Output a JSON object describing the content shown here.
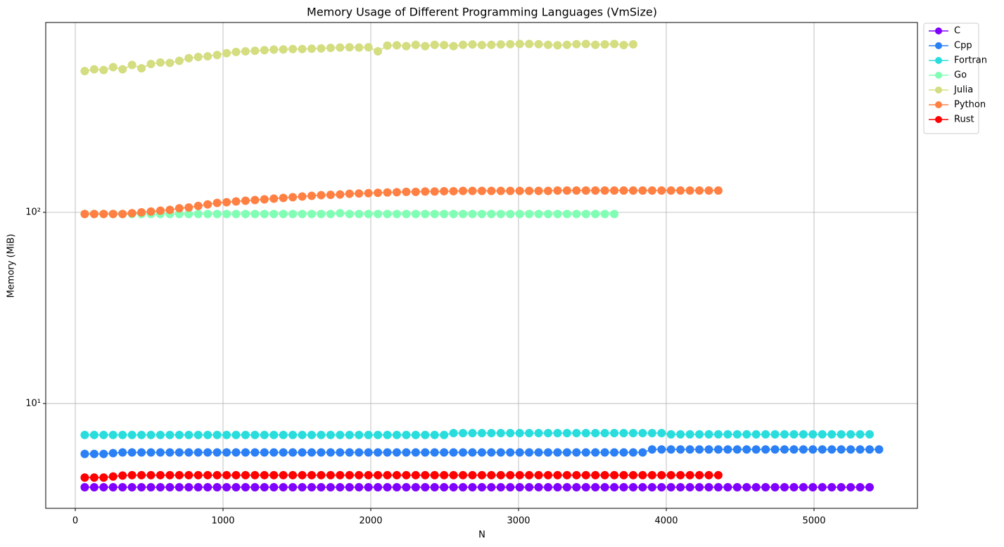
{
  "chart_data": {
    "type": "line",
    "title": "Memory Usage of Different Programming Languages (VmSize)",
    "xlabel": "N",
    "ylabel": "Memory (MiB)",
    "yscale": "log",
    "grid": true,
    "legend": "outside upper right",
    "xlim": [
      -200,
      5700
    ],
    "ylim": [
      2.83,
      984
    ],
    "xticks": [
      0,
      1000,
      2000,
      3000,
      4000,
      5000
    ],
    "yticks": [
      {
        "value": 10,
        "label": "10¹"
      },
      {
        "value": 100,
        "label": "10²"
      }
    ],
    "x": [
      64,
      128,
      192,
      256,
      320,
      384,
      448,
      512,
      576,
      640,
      704,
      768,
      832,
      896,
      960,
      1024,
      1088,
      1152,
      1216,
      1280,
      1344,
      1408,
      1472,
      1536,
      1600,
      1664,
      1728,
      1792,
      1856,
      1920,
      1984,
      2048,
      2112,
      2176,
      2240,
      2304,
      2368,
      2432,
      2496,
      2560,
      2624,
      2688,
      2752,
      2816,
      2880,
      2944,
      3008,
      3072,
      3136,
      3200,
      3264,
      3328,
      3392,
      3456,
      3520,
      3584,
      3648,
      3712,
      3776,
      3840,
      3904,
      3968,
      4032,
      4096,
      4160,
      4224,
      4288,
      4352,
      4416,
      4480,
      4544,
      4608,
      4672,
      4736,
      4800,
      4864,
      4928,
      4992,
      5056,
      5120,
      5184,
      5248,
      5312,
      5376,
      5440
    ],
    "series": [
      {
        "name": "C",
        "color": "#8000ff",
        "values": [
          3.65,
          3.65,
          3.65,
          3.65,
          3.65,
          3.65,
          3.65,
          3.65,
          3.65,
          3.65,
          3.65,
          3.65,
          3.65,
          3.65,
          3.65,
          3.65,
          3.65,
          3.65,
          3.65,
          3.65,
          3.65,
          3.65,
          3.65,
          3.65,
          3.65,
          3.65,
          3.65,
          3.65,
          3.65,
          3.65,
          3.65,
          3.65,
          3.65,
          3.65,
          3.65,
          3.65,
          3.65,
          3.65,
          3.65,
          3.65,
          3.65,
          3.65,
          3.65,
          3.65,
          3.65,
          3.65,
          3.65,
          3.65,
          3.65,
          3.65,
          3.65,
          3.65,
          3.65,
          3.65,
          3.65,
          3.65,
          3.65,
          3.65,
          3.65,
          3.65,
          3.65,
          3.65,
          3.65,
          3.65,
          3.65,
          3.65,
          3.65,
          3.65,
          3.65,
          3.65,
          3.65,
          3.65,
          3.65,
          3.65,
          3.65,
          3.65,
          3.65,
          3.65,
          3.65,
          3.65,
          3.65,
          3.65,
          3.65,
          3.65,
          null
        ]
      },
      {
        "name": "Cpp",
        "color": "#2b80f6",
        "values": [
          5.45,
          5.45,
          5.45,
          5.5,
          5.55,
          5.55,
          5.55,
          5.55,
          5.55,
          5.55,
          5.55,
          5.55,
          5.55,
          5.55,
          5.55,
          5.55,
          5.55,
          5.55,
          5.55,
          5.55,
          5.55,
          5.55,
          5.55,
          5.55,
          5.55,
          5.55,
          5.55,
          5.55,
          5.55,
          5.55,
          5.55,
          5.55,
          5.55,
          5.55,
          5.55,
          5.55,
          5.55,
          5.55,
          5.55,
          5.55,
          5.55,
          5.55,
          5.55,
          5.55,
          5.55,
          5.55,
          5.55,
          5.55,
          5.55,
          5.55,
          5.55,
          5.55,
          5.55,
          5.55,
          5.55,
          5.55,
          5.55,
          5.55,
          5.55,
          5.55,
          5.75,
          5.75,
          5.75,
          5.75,
          5.75,
          5.75,
          5.75,
          5.75,
          5.75,
          5.75,
          5.75,
          5.75,
          5.75,
          5.75,
          5.75,
          5.75,
          5.75,
          5.75,
          5.75,
          5.75,
          5.75,
          5.75,
          5.75,
          5.75,
          5.75
        ]
      },
      {
        "name": "Fortran",
        "color": "#2adddd",
        "values": [
          6.85,
          6.85,
          6.85,
          6.85,
          6.85,
          6.85,
          6.85,
          6.85,
          6.85,
          6.85,
          6.85,
          6.85,
          6.85,
          6.85,
          6.85,
          6.85,
          6.85,
          6.85,
          6.85,
          6.85,
          6.85,
          6.85,
          6.85,
          6.85,
          6.85,
          6.85,
          6.85,
          6.85,
          6.85,
          6.85,
          6.85,
          6.85,
          6.85,
          6.85,
          6.85,
          6.85,
          6.85,
          6.85,
          6.85,
          7.0,
          7.0,
          7.0,
          7.0,
          7.0,
          7.0,
          7.0,
          7.0,
          7.0,
          7.0,
          7.0,
          7.0,
          7.0,
          7.0,
          7.0,
          7.0,
          7.0,
          7.0,
          7.0,
          7.0,
          7.0,
          7.0,
          7.0,
          6.9,
          6.9,
          6.9,
          6.9,
          6.9,
          6.9,
          6.9,
          6.9,
          6.9,
          6.9,
          6.9,
          6.9,
          6.9,
          6.9,
          6.9,
          6.9,
          6.9,
          6.9,
          6.9,
          6.9,
          6.9,
          6.9,
          null
        ]
      },
      {
        "name": "Go",
        "color": "#80ffb4",
        "values": [
          98,
          98,
          98,
          98,
          98,
          98,
          98,
          98,
          98,
          98,
          98,
          98,
          98,
          98,
          98,
          98,
          98,
          98,
          98,
          98,
          98,
          98,
          98,
          98,
          98,
          98,
          98,
          99,
          98,
          98,
          98,
          98,
          98,
          98,
          98,
          98,
          98,
          98,
          98,
          98,
          98,
          98,
          98,
          98,
          98,
          98,
          98,
          98,
          98,
          98,
          98,
          98,
          98,
          98,
          98,
          98,
          98,
          null,
          null,
          null,
          null,
          null,
          null,
          null,
          null,
          null,
          null,
          null,
          null,
          null,
          null,
          null,
          null,
          null,
          null,
          null,
          null,
          null,
          null,
          null,
          null,
          null,
          null,
          null,
          null
        ]
      },
      {
        "name": "Julia",
        "color": "#d4dd80",
        "values": [
          548,
          560,
          555,
          575,
          560,
          590,
          567,
          597,
          608,
          605,
          620,
          640,
          650,
          655,
          665,
          680,
          690,
          695,
          700,
          705,
          710,
          712,
          715,
          715,
          718,
          720,
          725,
          728,
          730,
          728,
          730,
          695,
          745,
          748,
          740,
          752,
          740,
          752,
          750,
          740,
          752,
          755,
          750,
          752,
          755,
          758,
          760,
          760,
          758,
          752,
          748,
          752,
          758,
          760,
          752,
          756,
          760,
          750,
          757,
          null,
          null,
          null,
          null,
          null,
          null,
          null,
          null,
          null,
          null,
          null,
          null,
          null,
          null,
          null,
          null,
          null,
          null,
          null,
          null,
          null,
          null,
          null,
          null,
          null,
          null
        ]
      },
      {
        "name": "Python",
        "color": "#ff8042",
        "values": [
          98,
          98,
          98,
          98,
          98,
          99,
          100,
          101,
          102,
          103,
          105,
          106,
          108,
          110,
          112,
          113,
          114,
          115,
          116,
          117,
          118,
          119,
          120,
          121,
          122,
          123,
          123.5,
          124,
          125,
          125.5,
          126,
          126.5,
          127,
          127.5,
          128,
          128,
          128.5,
          128.5,
          129,
          129,
          129.5,
          129.5,
          129.5,
          129.5,
          129.5,
          129.5,
          129.5,
          129.5,
          129.5,
          129.5,
          130,
          130,
          130,
          130,
          130,
          130,
          130,
          130,
          130,
          130,
          130,
          130,
          130,
          130,
          130,
          130,
          130,
          130,
          null,
          null,
          null,
          null,
          null,
          null,
          null,
          null,
          null,
          null,
          null,
          null,
          null,
          null,
          null,
          null,
          null
        ]
      },
      {
        "name": "Rust",
        "color": "#ff0000",
        "values": [
          4.1,
          4.1,
          4.1,
          4.15,
          4.2,
          4.22,
          4.22,
          4.22,
          4.22,
          4.22,
          4.22,
          4.22,
          4.22,
          4.22,
          4.22,
          4.22,
          4.22,
          4.22,
          4.22,
          4.22,
          4.22,
          4.22,
          4.22,
          4.22,
          4.22,
          4.22,
          4.22,
          4.22,
          4.22,
          4.22,
          4.22,
          4.22,
          4.22,
          4.22,
          4.22,
          4.22,
          4.22,
          4.22,
          4.22,
          4.22,
          4.22,
          4.22,
          4.22,
          4.22,
          4.22,
          4.22,
          4.22,
          4.22,
          4.22,
          4.22,
          4.22,
          4.22,
          4.22,
          4.22,
          4.22,
          4.22,
          4.22,
          4.22,
          4.22,
          4.22,
          4.22,
          4.22,
          4.22,
          4.22,
          4.22,
          4.22,
          4.22,
          4.22,
          null,
          null,
          null,
          null,
          null,
          null,
          null,
          null,
          null,
          null,
          null,
          null,
          null,
          null,
          null,
          null,
          null
        ]
      }
    ]
  }
}
